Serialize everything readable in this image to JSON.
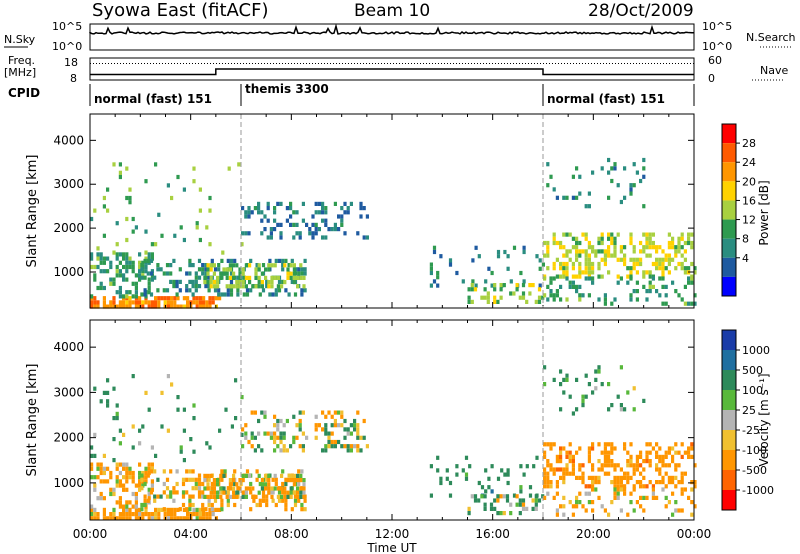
{
  "header": {
    "title": "Syowa East (fitACF)",
    "beam": "Beam 10",
    "date": "28/Oct/2009"
  },
  "noise_panel": {
    "left_label": "N.Sky",
    "right_label": "N.Search",
    "tick_top": "10^5",
    "tick_bottom": "10^0"
  },
  "freq_panel": {
    "left_label_1": "Freq.",
    "left_label_2": "[MHz]",
    "left_ticks": [
      "18",
      "8"
    ],
    "right_ticks": [
      "60",
      "0"
    ],
    "right_label": "Nave"
  },
  "cpid": {
    "label": "CPID",
    "segments": [
      {
        "name": "normal (fast) 151",
        "start_hour": 0,
        "end_hour": 6
      },
      {
        "name": "themis 3300",
        "start_hour": 6,
        "end_hour": 18
      },
      {
        "name": "normal (fast) 151",
        "start_hour": 18,
        "end_hour": 24
      }
    ]
  },
  "power_panel": {
    "ylabel": "Slant Range [km]",
    "colorbar_label": "Power [dB]",
    "colorbar_ticks": [
      "28",
      "24",
      "20",
      "16",
      "12",
      "8",
      "4"
    ],
    "colorbar_colors": [
      "#ff0000",
      "#ff5a00",
      "#ff9600",
      "#ffd200",
      "#a8d040",
      "#2e9a50",
      "#2a8d80",
      "#1e5aa0",
      "#0000ff"
    ]
  },
  "velocity_panel": {
    "ylabel": "Slant Range [km]",
    "colorbar_label": "Velocity [m s⁻¹]",
    "colorbar_ticks": [
      "1000",
      "500",
      "100",
      "25",
      "-25",
      "-100",
      "-500",
      "-1000"
    ],
    "colorbar_colors": [
      "#1a3ca8",
      "#1f6fa0",
      "#2d8a5a",
      "#58b83a",
      "#b4b4b4",
      "#f0c030",
      "#ff9600",
      "#ff6400",
      "#ff0000"
    ]
  },
  "chart_data": {
    "type": "heatmap",
    "x_unit": "hour UT",
    "xlim": [
      0,
      24
    ],
    "x_ticks": [
      "00:00",
      "04:00",
      "08:00",
      "12:00",
      "16:00",
      "20:00",
      "00:00"
    ],
    "xlabel": "Time UT",
    "ylim": [
      180,
      4600
    ],
    "y_ticks": [
      1000,
      2000,
      3000,
      4000
    ],
    "frequency_mhz": [
      {
        "x": 0,
        "y": 10.5
      },
      {
        "x": 5,
        "y": 10.5
      },
      {
        "x": 5,
        "y": 13.0
      },
      {
        "x": 18,
        "y": 13.0
      },
      {
        "x": 18,
        "y": 10.5
      },
      {
        "x": 24,
        "y": 10.5
      }
    ],
    "nave": 45,
    "scatter_regions": [
      {
        "x": [
          0.0,
          5.2
        ],
        "range_km": [
          250,
          450
        ],
        "density": 0.75,
        "power_db": 24,
        "velocity_ms": -200
      },
      {
        "x": [
          0.0,
          2.5
        ],
        "range_km": [
          450,
          1450
        ],
        "density": 0.45,
        "power_db": 10,
        "velocity_ms": -150
      },
      {
        "x": [
          2.0,
          8.5
        ],
        "range_km": [
          450,
          1300
        ],
        "density": 0.35,
        "power_db": 8,
        "velocity_ms": -120
      },
      {
        "x": [
          4.5,
          8.5
        ],
        "range_km": [
          700,
          1200
        ],
        "density": 0.55,
        "power_db": 14,
        "velocity_ms": -100
      },
      {
        "x": [
          0.0,
          6.0
        ],
        "range_km": [
          1400,
          3500
        ],
        "density": 0.05,
        "power_db": 12,
        "velocity_ms": 150
      },
      {
        "x": [
          6.0,
          11.0
        ],
        "range_km": [
          1750,
          2600
        ],
        "density": 0.3,
        "power_db": 6,
        "velocity_ms": 10
      },
      {
        "x": [
          13.5,
          18.0
        ],
        "range_km": [
          700,
          1600
        ],
        "density": 0.12,
        "power_db": 7,
        "velocity_ms": 300
      },
      {
        "x": [
          15.0,
          18.0
        ],
        "range_km": [
          300,
          750
        ],
        "density": 0.3,
        "power_db": 14,
        "velocity_ms": 80
      },
      {
        "x": [
          18.0,
          24.0
        ],
        "range_km": [
          900,
          1900
        ],
        "density": 0.4,
        "power_db": 16,
        "velocity_ms": -300
      },
      {
        "x": [
          18.0,
          24.0
        ],
        "range_km": [
          300,
          900
        ],
        "density": 0.22,
        "power_db": 10,
        "velocity_ms": -150
      },
      {
        "x": [
          18.0,
          22.0
        ],
        "range_km": [
          2500,
          3600
        ],
        "density": 0.08,
        "power_db": 8,
        "velocity_ms": 200
      }
    ],
    "vertical_markers_hour": [
      6,
      18
    ]
  }
}
